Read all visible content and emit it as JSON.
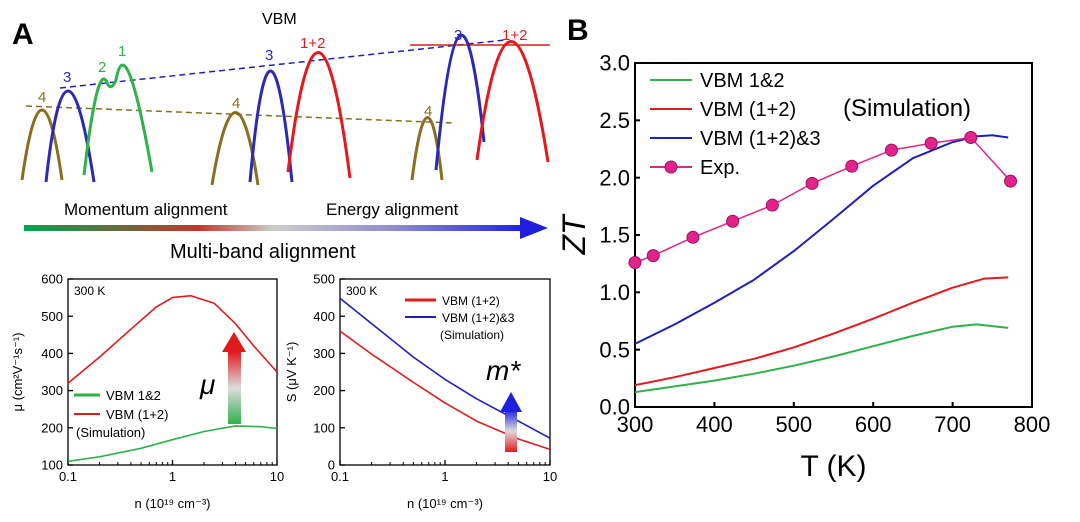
{
  "panel_labels": {
    "a": "A",
    "b": "B"
  },
  "bands": {
    "vbm_label": "VBM",
    "group1": [
      "4",
      "3",
      "2",
      "1"
    ],
    "group2": [
      "4",
      "3",
      "1+2"
    ],
    "group3": [
      "4",
      "3",
      "1+2"
    ],
    "momentum_label": "Momentum alignment",
    "energy_label": "Energy alignment",
    "multiband_label": "Multi-band alignment"
  },
  "colors": {
    "green": "#2eb24a",
    "red": "#e31a1c",
    "blue": "#1f1fbf",
    "olive": "#8b6d1f",
    "pink": "#e0248c",
    "dash_olive": "#8b6d1f",
    "dash_blue": "#1f1fbf"
  },
  "chart_data": [
    {
      "id": "mobility",
      "type": "line",
      "xscale": "log",
      "xlim": [
        0.1,
        10
      ],
      "ylim": [
        100,
        600
      ],
      "xticks": [
        0.1,
        1,
        10
      ],
      "xtick_labels": [
        "0.1",
        "1",
        "10"
      ],
      "yticks": [
        100,
        200,
        300,
        400,
        500,
        600
      ],
      "ytick_labels": [
        "100",
        "200",
        "300",
        "400",
        "500",
        "600"
      ],
      "xlabel": "n (10¹⁹ cm⁻³)",
      "ylabel": "μ (cm²V⁻¹s⁻¹)",
      "annotation": "300 K",
      "arrow_label": "μ",
      "legend": [
        "VBM 1&2",
        "VBM (1+2)",
        "(Simulation)"
      ],
      "series": [
        {
          "name": "VBM 1&2",
          "color": "#2eb24a",
          "x": [
            0.1,
            0.2,
            0.5,
            1,
            2,
            4,
            7,
            10
          ],
          "y": [
            110,
            122,
            145,
            168,
            190,
            205,
            203,
            198
          ]
        },
        {
          "name": "VBM (1+2)",
          "color": "#e31a1c",
          "x": [
            0.1,
            0.2,
            0.4,
            0.7,
            1,
            1.5,
            2.5,
            4,
            6,
            10
          ],
          "y": [
            320,
            390,
            465,
            525,
            550,
            555,
            535,
            480,
            420,
            350
          ]
        }
      ]
    },
    {
      "id": "seebeck",
      "type": "line",
      "xscale": "log",
      "xlim": [
        0.1,
        10
      ],
      "ylim": [
        0,
        500
      ],
      "xticks": [
        0.1,
        1,
        10
      ],
      "xtick_labels": [
        "0.1",
        "1",
        "10"
      ],
      "yticks": [
        0,
        100,
        200,
        300,
        400,
        500
      ],
      "ytick_labels": [
        "0",
        "100",
        "200",
        "300",
        "400",
        "500"
      ],
      "xlabel": "n (10¹⁹ cm⁻³)",
      "ylabel": "S (μV K⁻¹)",
      "annotation": "300 K",
      "arrow_label": "m*",
      "legend": [
        "VBM (1+2)",
        "VBM (1+2)&3",
        "(Simulation)"
      ],
      "series": [
        {
          "name": "VBM (1+2)",
          "color": "#e31a1c",
          "x": [
            0.1,
            0.2,
            0.5,
            1,
            2,
            5,
            10
          ],
          "y": [
            360,
            298,
            222,
            167,
            118,
            70,
            42
          ]
        },
        {
          "name": "VBM (1+2)&3",
          "color": "#1f1fbf",
          "x": [
            0.1,
            0.2,
            0.5,
            1,
            2,
            5,
            10
          ],
          "y": [
            448,
            380,
            290,
            230,
            178,
            118,
            72
          ]
        }
      ]
    },
    {
      "id": "zt",
      "type": "line",
      "xlim": [
        300,
        800
      ],
      "ylim": [
        0,
        3.0
      ],
      "xticks": [
        300,
        400,
        500,
        600,
        700,
        800
      ],
      "xtick_labels": [
        "300",
        "400",
        "500",
        "600",
        "700",
        "800"
      ],
      "yticks": [
        0,
        0.5,
        1.0,
        1.5,
        2.0,
        2.5,
        3.0
      ],
      "ytick_labels": [
        "0.0",
        "0.5",
        "1.0",
        "1.5",
        "2.0",
        "2.5",
        "3.0"
      ],
      "xlabel": "T (K)",
      "ylabel": "ZT",
      "annotation": "(Simulation)",
      "legend": [
        "VBM 1&2",
        "VBM (1+2)",
        "VBM (1+2)&3",
        "Exp."
      ],
      "series": [
        {
          "name": "VBM 1&2",
          "color": "#2eb24a",
          "x": [
            300,
            350,
            400,
            450,
            500,
            550,
            600,
            650,
            700,
            730,
            770
          ],
          "y": [
            0.13,
            0.18,
            0.23,
            0.29,
            0.36,
            0.44,
            0.53,
            0.62,
            0.7,
            0.72,
            0.69
          ]
        },
        {
          "name": "VBM (1+2)",
          "color": "#e31a1c",
          "x": [
            300,
            350,
            400,
            450,
            500,
            550,
            600,
            650,
            700,
            740,
            770
          ],
          "y": [
            0.19,
            0.26,
            0.34,
            0.42,
            0.52,
            0.64,
            0.77,
            0.91,
            1.04,
            1.12,
            1.13
          ]
        },
        {
          "name": "VBM (1+2)&3",
          "color": "#1f1fbf",
          "x": [
            300,
            350,
            400,
            450,
            500,
            550,
            600,
            650,
            700,
            730,
            750,
            770
          ],
          "y": [
            0.55,
            0.72,
            0.91,
            1.11,
            1.36,
            1.64,
            1.93,
            2.17,
            2.31,
            2.36,
            2.37,
            2.35
          ]
        },
        {
          "name": "Exp.",
          "color": "#e0248c",
          "markers": true,
          "x": [
            300,
            323,
            373,
            423,
            473,
            523,
            573,
            623,
            673,
            723,
            773
          ],
          "y": [
            1.26,
            1.32,
            1.48,
            1.62,
            1.76,
            1.95,
            2.1,
            2.24,
            2.3,
            2.35,
            1.97
          ]
        }
      ]
    }
  ]
}
